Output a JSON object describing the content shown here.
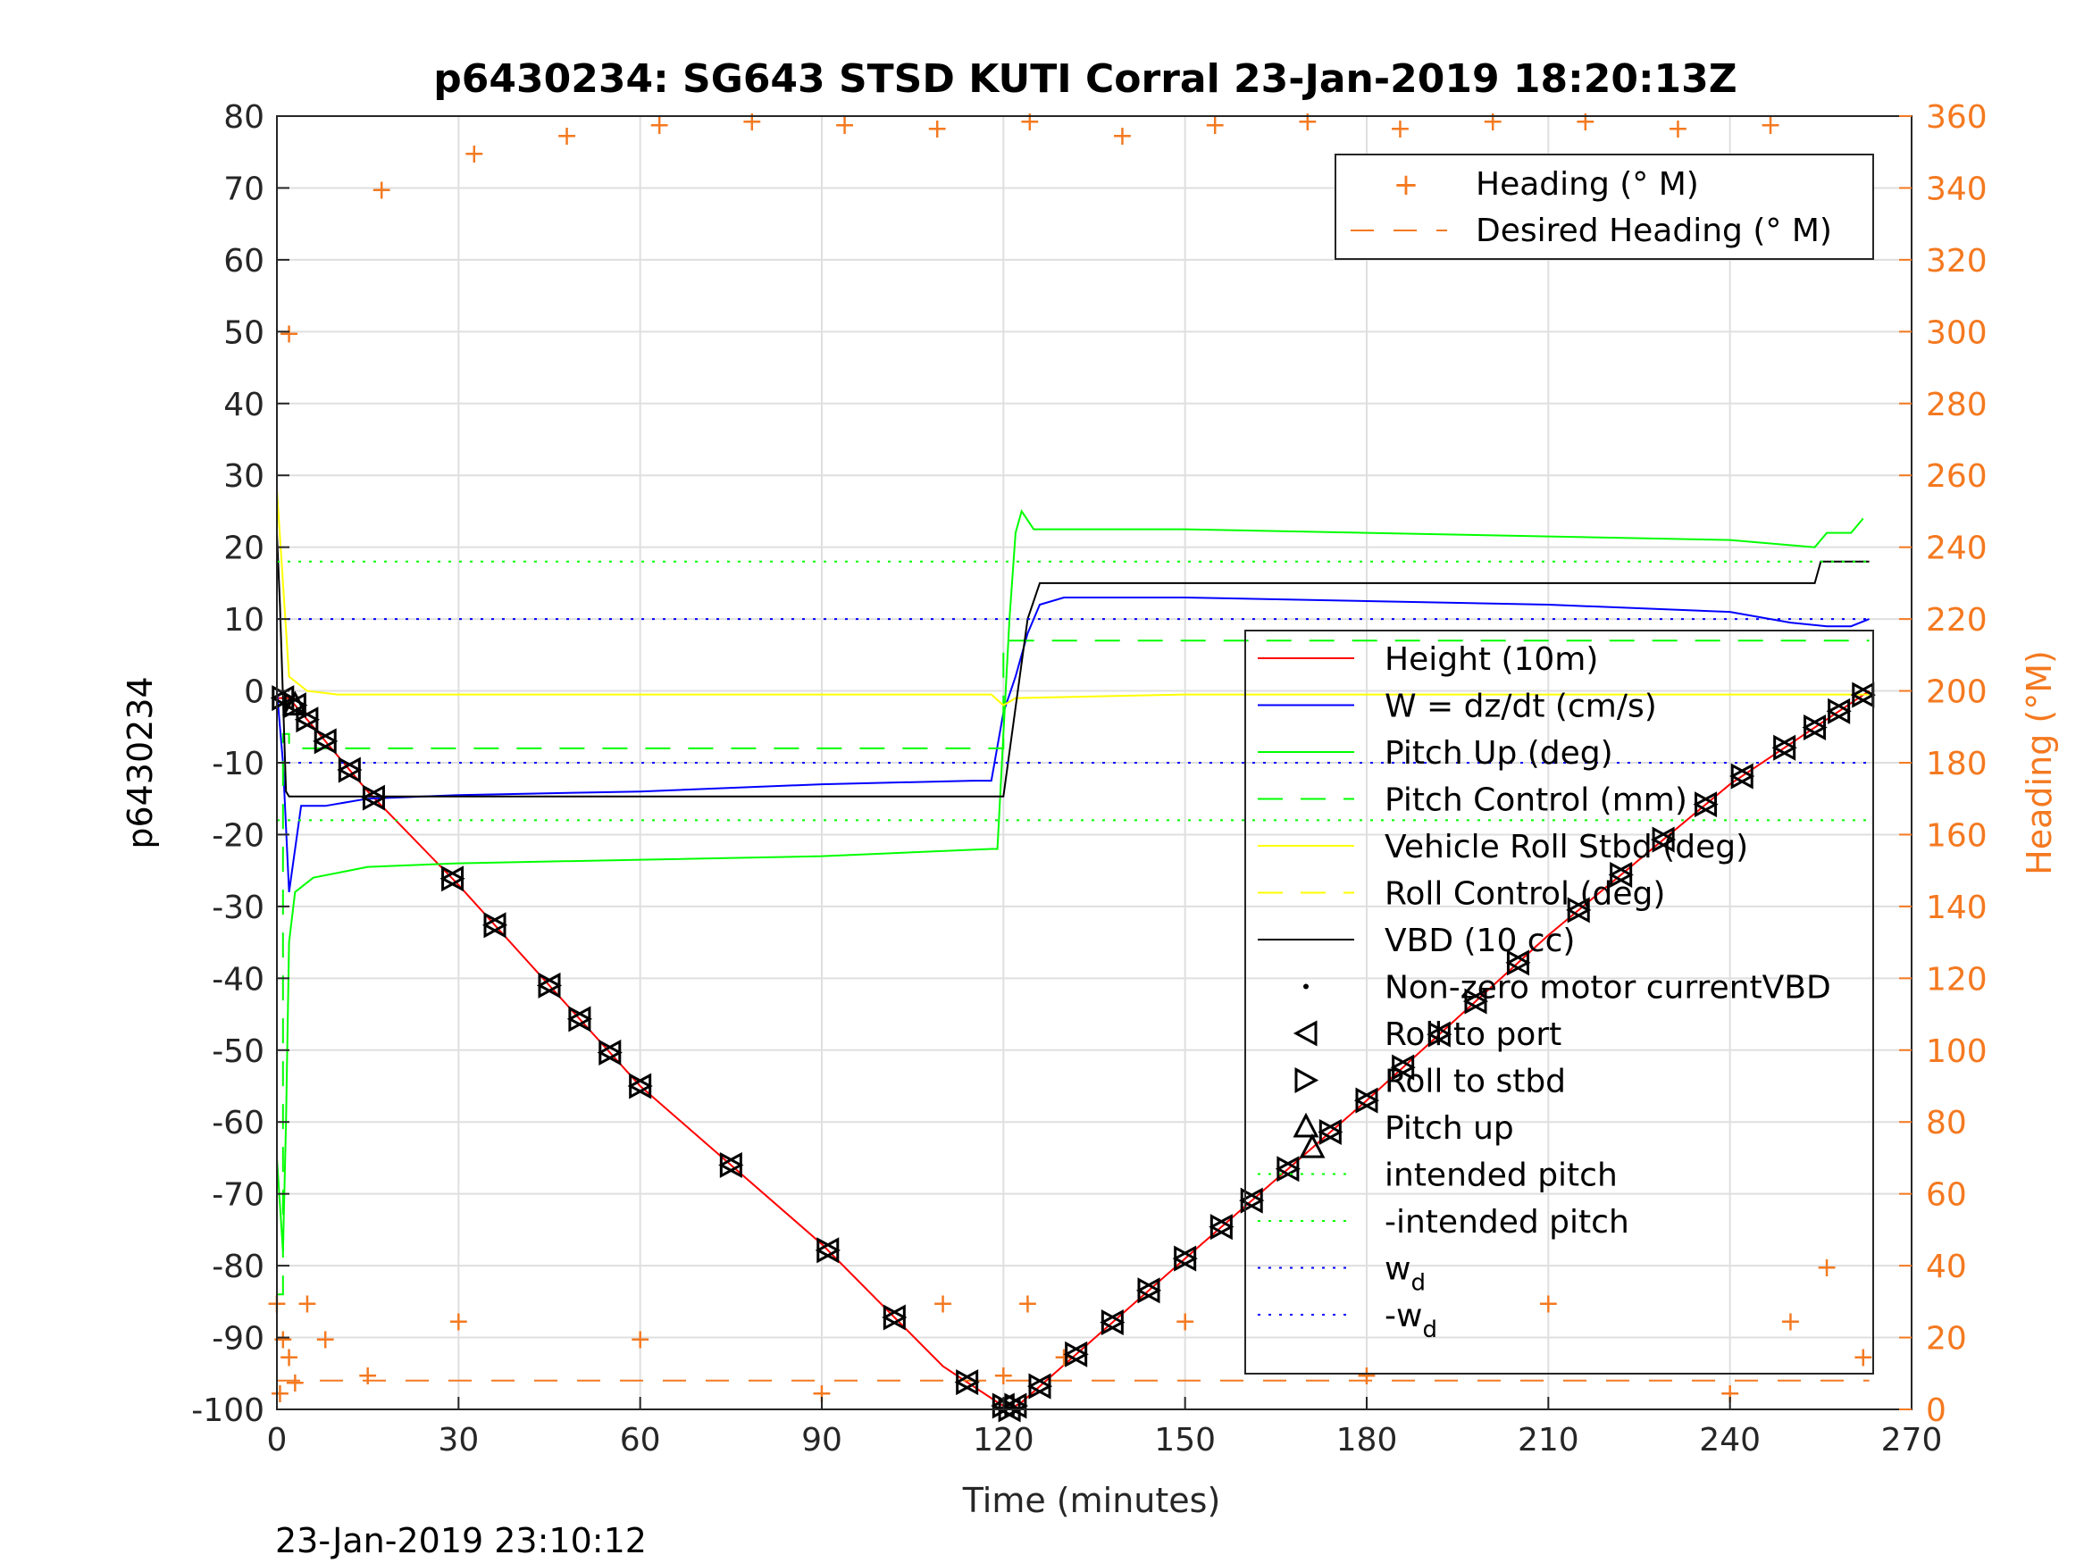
{
  "chart_data": {
    "type": "line",
    "title": "p6430234: SG643 STSD KUTI Corral 23-Jan-2019 18:20:13Z",
    "xlabel": "Time (minutes)",
    "ylabel": "p6430234",
    "ylabel_right": "Heading (°M)",
    "footer": "23-Jan-2019 23:10:12",
    "xlim": [
      0,
      270
    ],
    "ylim": [
      -100,
      80
    ],
    "ylim_right": [
      0,
      360
    ],
    "x_ticks": [
      "0",
      "30",
      "60",
      "90",
      "120",
      "150",
      "180",
      "210",
      "240",
      "270"
    ],
    "y_ticks": [
      "-100",
      "-90",
      "-80",
      "-70",
      "-60",
      "-50",
      "-40",
      "-30",
      "-20",
      "-10",
      "0",
      "10",
      "20",
      "30",
      "40",
      "50",
      "60",
      "70",
      "80"
    ],
    "y_ticks_right": [
      "0",
      "20",
      "40",
      "60",
      "80",
      "100",
      "120",
      "140",
      "160",
      "180",
      "200",
      "220",
      "240",
      "260",
      "280",
      "300",
      "320",
      "340",
      "360"
    ],
    "grid": true,
    "legend_top": {
      "position": "top-right",
      "entries": [
        "Heading (° M)",
        "Desired Heading (° M)"
      ]
    },
    "legend_main": {
      "position": "right",
      "entries": [
        "Height (10m)",
        "W = dz/dt (cm/s)",
        "Pitch Up (deg)",
        "Pitch Control (mm)",
        "Vehicle Roll Stbd (deg)",
        "Roll Control (deg)",
        "VBD (10 cc)",
        "Non-zero motor currentVBD",
        "Roll to port",
        "Roll to stbd",
        "Pitch up",
        "intended pitch",
        "-intended pitch",
        "w",
        "-w"
      ],
      "subscript": "d"
    },
    "colors": {
      "height": "#ff0000",
      "w": "#0000ff",
      "pitch": "#00ff00",
      "roll": "#ffff00",
      "vbd": "#000000",
      "heading": "#f47920"
    },
    "series": [
      {
        "name": "Height (10m)",
        "x": [
          0,
          2,
          15,
          30,
          60,
          90,
          110,
          119,
          121,
          123,
          150,
          180,
          210,
          240,
          263
        ],
        "y": [
          -1,
          -1,
          -14,
          -27,
          -55,
          -77,
          -94,
          -99,
          -100,
          -99,
          -79,
          -57,
          -34,
          -13,
          0
        ]
      },
      {
        "name": "W = dz/dt (cm/s)",
        "x": [
          0,
          1,
          2,
          4,
          8,
          15,
          30,
          60,
          90,
          115,
          118,
          120,
          122,
          124,
          126,
          130,
          150,
          180,
          210,
          240,
          250,
          256,
          260,
          263
        ],
        "y": [
          0,
          -10,
          -28,
          -16,
          -16,
          -15,
          -14.5,
          -14,
          -13,
          -12.5,
          -12.5,
          -3,
          2,
          8,
          12,
          13,
          13,
          12.5,
          12,
          11,
          9.5,
          9,
          9,
          10
        ]
      },
      {
        "name": "Pitch Up (deg)",
        "x": [
          0,
          1,
          1.5,
          2,
          3,
          6,
          15,
          30,
          60,
          90,
          118,
          119,
          120,
          121,
          122,
          123,
          125,
          130,
          150,
          180,
          210,
          240,
          254,
          256,
          260,
          262
        ],
        "y": [
          -65,
          -78,
          -60,
          -35,
          -28,
          -26,
          -24.5,
          -24,
          -23.5,
          -23,
          -22,
          -22,
          -6,
          10,
          22,
          25,
          22.5,
          22.5,
          22.5,
          22,
          21.5,
          21,
          20,
          22,
          22,
          24
        ]
      },
      {
        "name": "Pitch Control (mm)",
        "x": [
          0,
          1,
          1,
          2,
          2,
          120,
          120,
          263
        ],
        "y": [
          -84,
          -84,
          -6,
          -6,
          -8,
          -8,
          7,
          7
        ]
      },
      {
        "name": "Vehicle Roll Stbd (deg)",
        "x": [
          0,
          2,
          5,
          10,
          30,
          60,
          90,
          118,
          120,
          122,
          150,
          180,
          210,
          240,
          263
        ],
        "y": [
          28,
          2,
          0,
          -0.5,
          -0.5,
          -0.5,
          -0.5,
          -0.5,
          -2,
          -1,
          -0.5,
          -0.5,
          -0.5,
          -0.5,
          -0.5
        ]
      },
      {
        "name": "VBD (10 cc)",
        "x": [
          0,
          0.5,
          1.5,
          2,
          120,
          124,
          126,
          254,
          255,
          263
        ],
        "y": [
          22,
          12,
          -14,
          -14.7,
          -14.7,
          10,
          15,
          15,
          18,
          18
        ]
      },
      {
        "name": "intended pitch",
        "x": [
          0,
          263
        ],
        "y": [
          18,
          18
        ]
      },
      {
        "name": "-intended pitch",
        "x": [
          0,
          263
        ],
        "y": [
          -18,
          -18
        ]
      },
      {
        "name": "w_d",
        "x": [
          0,
          263
        ],
        "y": [
          10,
          10
        ]
      },
      {
        "name": "-w_d",
        "x": [
          0,
          263
        ],
        "y": [
          -10,
          -10
        ]
      },
      {
        "name": "Heading (° M)",
        "axis": "right",
        "x": [
          0,
          0.5,
          1,
          2,
          3,
          5,
          8,
          15,
          30,
          60,
          90,
          110,
          120,
          124,
          130,
          150,
          180,
          210,
          240,
          250,
          256,
          262
        ],
        "y": [
          30,
          5,
          20,
          15,
          8,
          30,
          20,
          10,
          25,
          20,
          5,
          30,
          10,
          30,
          15,
          25,
          10,
          30,
          5,
          25,
          40,
          15
        ],
        "y_near_top": [
          300,
          340,
          350,
          355,
          358,
          359,
          358,
          357,
          359,
          355,
          358,
          359,
          357,
          359,
          359,
          357,
          358
        ]
      },
      {
        "name": "Desired Heading (° M)",
        "axis": "right",
        "x": [
          0,
          263
        ],
        "y": [
          8,
          8
        ]
      }
    ],
    "markers": {
      "roll_to_port_x": [
        1,
        3,
        5,
        8,
        12,
        16,
        29,
        36,
        45,
        50,
        55,
        60,
        75,
        91,
        102,
        114,
        120,
        121,
        122,
        126,
        132,
        138,
        144,
        150,
        156,
        161,
        167,
        174,
        180,
        186,
        192,
        198,
        205,
        215,
        222,
        229,
        236,
        242,
        249,
        254,
        258,
        262
      ],
      "pitch_up_x": [
        3,
        171
      ]
    }
  }
}
